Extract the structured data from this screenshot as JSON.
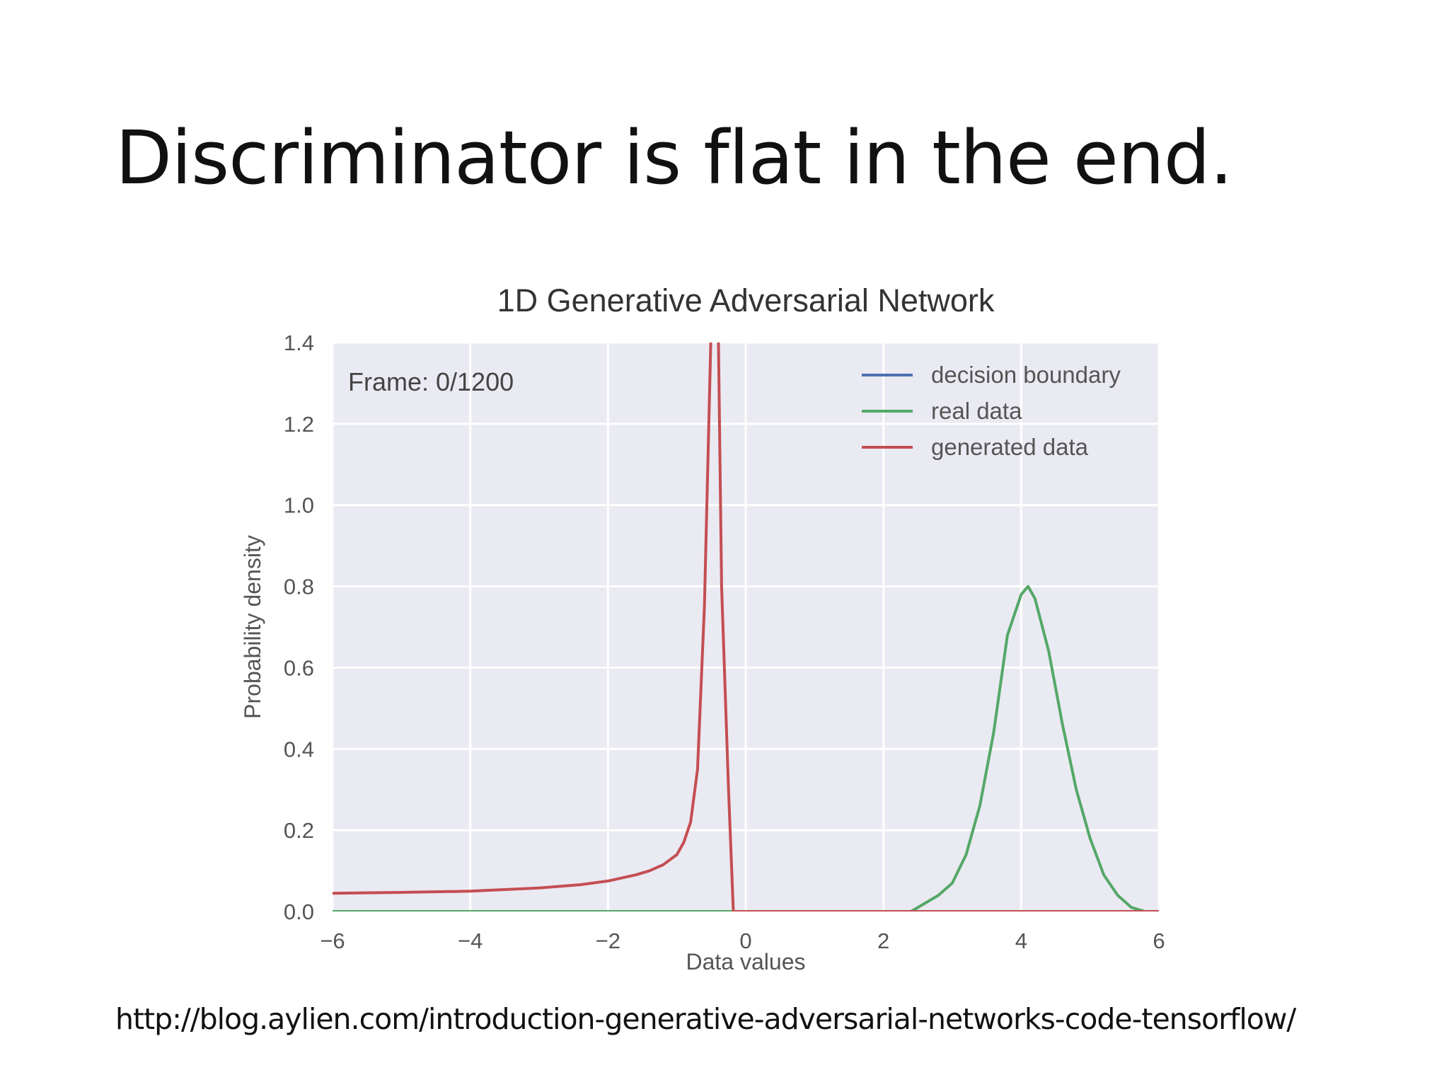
{
  "slide": {
    "title": "Discriminator is flat in the end.",
    "source": "http://blog.aylien.com/introduction-generative-adversarial-networks-code-tensorflow/"
  },
  "chart_data": {
    "type": "line",
    "title": "1D Generative Adversarial Network",
    "xlabel": "Data values",
    "ylabel": "Probability density",
    "xlim": [
      -6,
      6
    ],
    "ylim": [
      0,
      1.4
    ],
    "xticks": [
      -6,
      -4,
      -2,
      0,
      2,
      4,
      6
    ],
    "xtick_labels": [
      "−6",
      "−4",
      "−2",
      "0",
      "2",
      "4",
      "6"
    ],
    "yticks": [
      0.0,
      0.2,
      0.4,
      0.6,
      0.8,
      1.0,
      1.2,
      1.4
    ],
    "ytick_labels": [
      "0.0",
      "0.2",
      "0.4",
      "0.6",
      "0.8",
      "1.0",
      "1.2",
      "1.4"
    ],
    "grid": true,
    "legend_position": "top-right",
    "annotation": "Frame: 0/1200",
    "colors": {
      "background": "#eaeaf2",
      "grid": "#ffffff",
      "decision_boundary": "#4c72b0",
      "real_data": "#55a868",
      "generated_data": "#c44e52"
    },
    "series": [
      {
        "name": "decision boundary",
        "color": "#4c72b0",
        "x": [],
        "y": []
      },
      {
        "name": "real data",
        "color": "#55a868",
        "x": [
          -6,
          2.4,
          2.6,
          2.8,
          3.0,
          3.2,
          3.4,
          3.6,
          3.8,
          4.0,
          4.1,
          4.2,
          4.4,
          4.6,
          4.8,
          5.0,
          5.2,
          5.4,
          5.6,
          5.8,
          6.0
        ],
        "y": [
          0.0,
          0.0,
          0.02,
          0.04,
          0.07,
          0.14,
          0.26,
          0.44,
          0.68,
          0.78,
          0.8,
          0.77,
          0.64,
          0.46,
          0.3,
          0.18,
          0.09,
          0.04,
          0.01,
          0.0,
          0.0
        ]
      },
      {
        "name": "generated data",
        "color": "#c44e52",
        "x": [
          -6,
          -5,
          -4,
          -3,
          -2.4,
          -2.0,
          -1.6,
          -1.4,
          -1.2,
          -1.0,
          -0.9,
          -0.8,
          -0.7,
          -0.6,
          -0.5,
          -0.4,
          -0.35,
          -0.25,
          -0.18,
          0.0,
          6.0
        ],
        "y": [
          0.045,
          0.047,
          0.05,
          0.058,
          0.066,
          0.075,
          0.09,
          0.1,
          0.115,
          0.14,
          0.17,
          0.22,
          0.35,
          0.75,
          1.45,
          1.45,
          0.8,
          0.3,
          0.0,
          0.0,
          0.0
        ]
      }
    ]
  }
}
